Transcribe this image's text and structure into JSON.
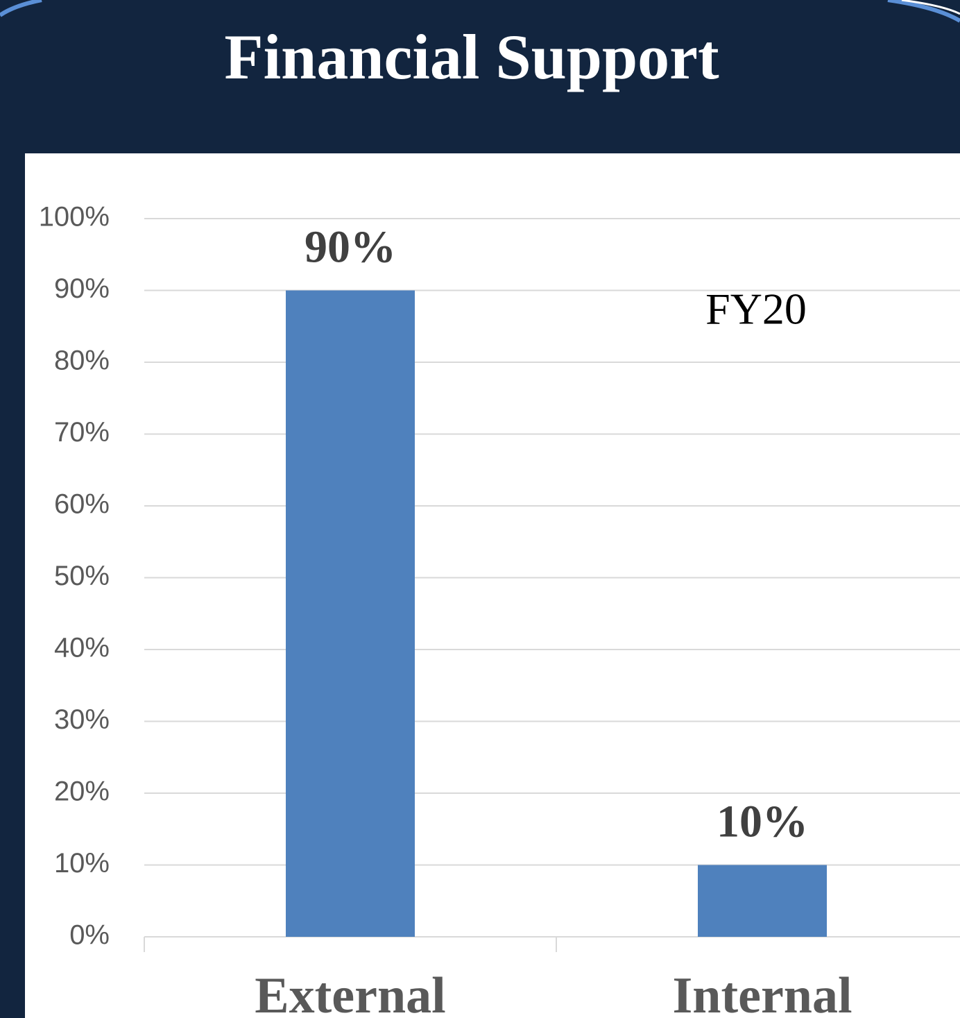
{
  "chart_data": {
    "type": "bar",
    "title": "Financial Support",
    "annotation": "FY20",
    "categories": [
      "External",
      "Internal"
    ],
    "values": [
      90,
      10
    ],
    "value_labels": [
      "90%",
      "10%"
    ],
    "color": "#4f81bd",
    "ylim": [
      0,
      100
    ],
    "yticks": [
      {
        "value": 0,
        "label": "0%"
      },
      {
        "value": 10,
        "label": "10%"
      },
      {
        "value": 20,
        "label": "20%"
      },
      {
        "value": 30,
        "label": "30%"
      },
      {
        "value": 40,
        "label": "40%"
      },
      {
        "value": 50,
        "label": "50%"
      },
      {
        "value": 60,
        "label": "60%"
      },
      {
        "value": 70,
        "label": "70%"
      },
      {
        "value": 80,
        "label": "80%"
      },
      {
        "value": 90,
        "label": "90%"
      },
      {
        "value": 100,
        "label": "100%"
      }
    ],
    "grid": true
  }
}
